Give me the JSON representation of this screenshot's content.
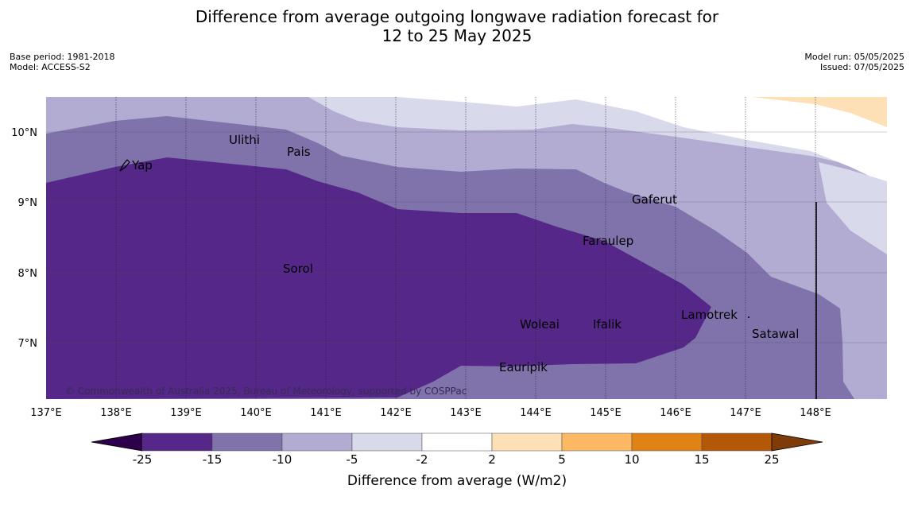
{
  "title": {
    "line1": "Difference from average outgoing longwave radiation forecast for",
    "line2": "12 to 25 May 2025"
  },
  "meta_left": {
    "base_period": "Base period: 1981-2018",
    "model": "Model: ACCESS-S2"
  },
  "meta_right": {
    "model_run": "Model run: 05/05/2025",
    "issued": "Issued: 07/05/2025"
  },
  "map": {
    "longitude_labels": [
      "137°E",
      "138°E",
      "139°E",
      "140°E",
      "141°E",
      "142°E",
      "143°E",
      "144°E",
      "145°E",
      "146°E",
      "147°E",
      "148°E"
    ],
    "latitude_labels": [
      "10°N",
      "9°N",
      "8°N",
      "7°N"
    ],
    "places": [
      {
        "name": "Ulithi"
      },
      {
        "name": "Pais"
      },
      {
        "name": "Yap"
      },
      {
        "name": "Gaferut"
      },
      {
        "name": "Faraulep"
      },
      {
        "name": "Sorol"
      },
      {
        "name": "Lamotrek"
      },
      {
        "name": "Woleai"
      },
      {
        "name": "Ifalik"
      },
      {
        "name": "Satawal"
      },
      {
        "name": "Eauripik"
      }
    ],
    "copyright": "© Commonwealth of Australia 2025, Bureau of Meteorology, supported by COSPPac"
  },
  "colorbar": {
    "label": "Difference from average (W/m2)",
    "ticks": [
      "-25",
      "-15",
      "-10",
      "-5",
      "-2",
      "2",
      "5",
      "10",
      "15",
      "25"
    ],
    "colors": [
      "#2d004b",
      "#542788",
      "#8073ac",
      "#b2abd2",
      "#d8daeb",
      "#ffffff",
      "#fee0b6",
      "#fdb863",
      "#e08214",
      "#b35806",
      "#7f3b08"
    ]
  }
}
